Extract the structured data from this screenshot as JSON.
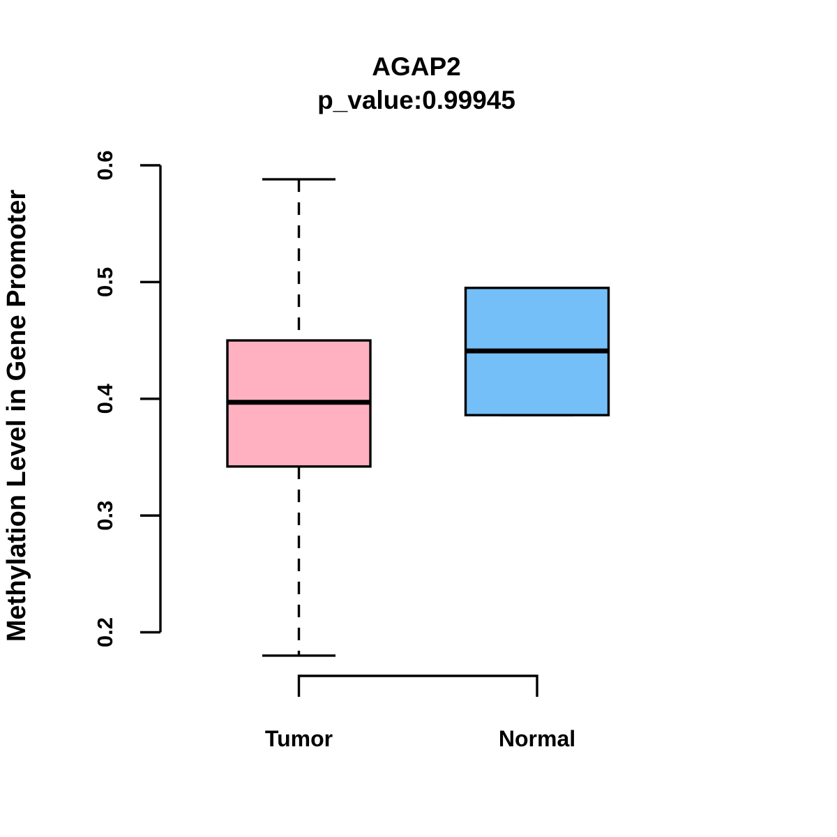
{
  "figure": {
    "background": "#FFFFFF",
    "stroke_color": "#000000"
  },
  "chart_data": {
    "type": "boxplot",
    "title": "AGAP2",
    "subtitle": "p_value:0.99945",
    "ylabel": "Methylation Level in Gene Promoter",
    "xlabel": "",
    "categories": [
      "Tumor",
      "Normal"
    ],
    "y_ticks": [
      0.2,
      0.3,
      0.4,
      0.5,
      0.6
    ],
    "y_tick_labels": [
      "0.2",
      "0.3",
      "0.4",
      "0.5",
      "0.6"
    ],
    "ylim": [
      0.2,
      0.6
    ],
    "grid": false,
    "legend": null,
    "series": [
      {
        "name": "Tumor",
        "fill": "#FFB1C1",
        "whisker_low": 0.18,
        "q1": 0.342,
        "median": 0.397,
        "q3": 0.45,
        "whisker_high": 0.588
      },
      {
        "name": "Normal",
        "fill": "#75BFF8",
        "whisker_low": 0.386,
        "q1": 0.386,
        "median": 0.441,
        "q3": 0.495,
        "whisker_high": 0.495
      }
    ]
  }
}
